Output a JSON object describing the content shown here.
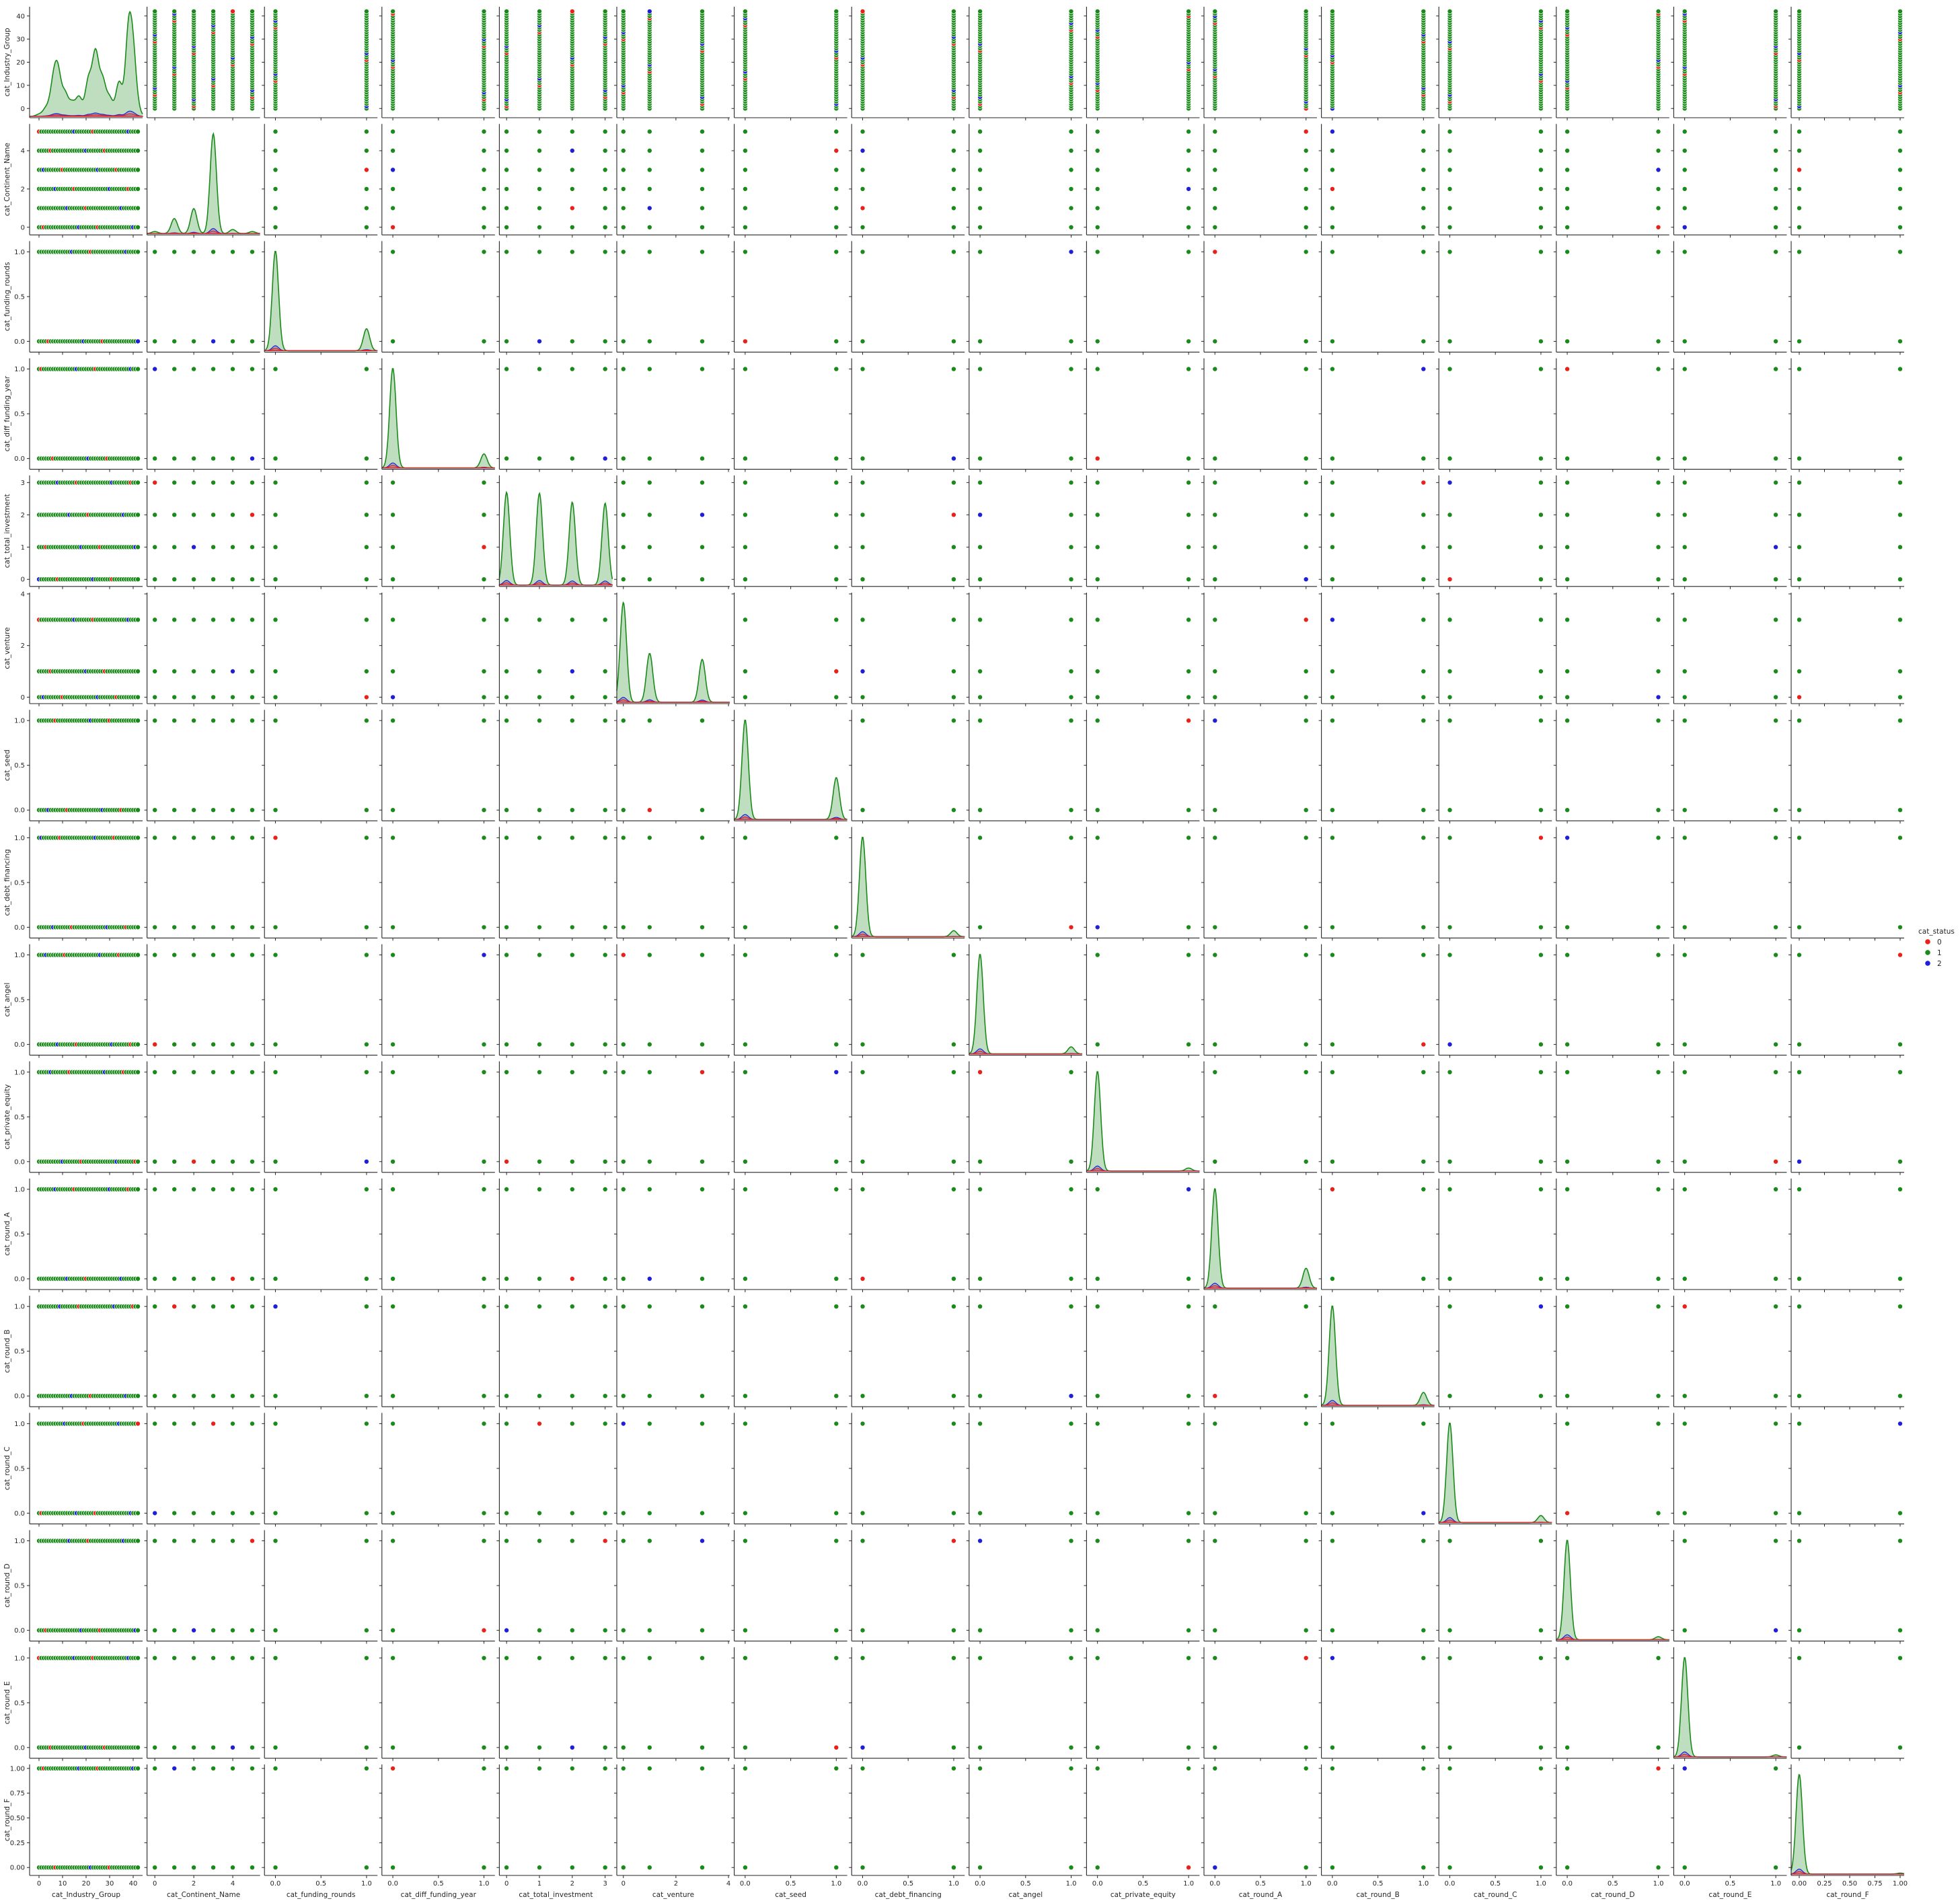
{
  "chart_data": {
    "type": "scatter",
    "variables": [
      {
        "name": "cat_Industry_Group",
        "range": [
          -4,
          44
        ],
        "ticks": [
          0,
          10,
          20,
          30,
          40
        ],
        "tick_labels": [
          "0",
          "10",
          "20",
          "30",
          "40"
        ],
        "values": [
          0,
          1,
          2,
          3,
          4,
          5,
          6,
          7,
          8,
          9,
          10,
          11,
          12,
          13,
          14,
          15,
          16,
          17,
          18,
          19,
          20,
          21,
          22,
          23,
          24,
          25,
          26,
          27,
          28,
          29,
          30,
          31,
          32,
          33,
          34,
          35,
          36,
          37,
          38,
          39,
          40,
          41,
          42
        ],
        "kde": [
          [
            0,
            0.02
          ],
          [
            3,
            0.08
          ],
          [
            6,
            0.3
          ],
          [
            8,
            0.42
          ],
          [
            11,
            0.22
          ],
          [
            14,
            0.13
          ],
          [
            17,
            0.19
          ],
          [
            21,
            0.36
          ],
          [
            24,
            0.62
          ],
          [
            27,
            0.35
          ],
          [
            30,
            0.18
          ],
          [
            34,
            0.34
          ],
          [
            38,
            0.8
          ],
          [
            40,
            0.55
          ],
          [
            42,
            0.05
          ]
        ]
      },
      {
        "name": "cat_Continent_Name",
        "range": [
          -0.4,
          5.4
        ],
        "ticks": [
          0,
          2,
          4
        ],
        "tick_labels": [
          "0",
          "2",
          "4"
        ],
        "values": [
          0,
          1,
          2,
          3,
          4,
          5
        ],
        "kde": [
          [
            0,
            0.02
          ],
          [
            1,
            0.15
          ],
          [
            2,
            0.25
          ],
          [
            3,
            1.0
          ],
          [
            4,
            0.04
          ],
          [
            5,
            0.02
          ]
        ]
      },
      {
        "name": "cat_funding_rounds",
        "range": [
          -0.12,
          1.12
        ],
        "ticks": [
          0,
          0.5,
          1
        ],
        "tick_labels": [
          "0.0",
          "0.5",
          "1.0"
        ],
        "values": [
          0,
          1
        ],
        "kde": [
          [
            0,
            1.0
          ],
          [
            1,
            0.22
          ]
        ]
      },
      {
        "name": "cat_diff_funding_year",
        "range": [
          -0.12,
          1.12
        ],
        "ticks": [
          0,
          0.5,
          1
        ],
        "tick_labels": [
          "0.0",
          "0.5",
          "1.0"
        ],
        "values": [
          0,
          1
        ],
        "kde": [
          [
            0,
            1.0
          ],
          [
            1,
            0.14
          ]
        ]
      },
      {
        "name": "cat_total_investment",
        "range": [
          -0.22,
          3.22
        ],
        "ticks": [
          0,
          1,
          2,
          3
        ],
        "tick_labels": [
          "0",
          "1",
          "2",
          "3"
        ],
        "values": [
          0,
          1,
          2,
          3
        ],
        "kde": [
          [
            0,
            0.93
          ],
          [
            1,
            0.92
          ],
          [
            2,
            0.83
          ],
          [
            3,
            0.82
          ]
        ]
      },
      {
        "name": "cat_venture",
        "range": [
          -0.25,
          4.05
        ],
        "ticks": [
          0,
          2,
          4
        ],
        "tick_labels": [
          "0",
          "2",
          "4"
        ],
        "values": [
          0,
          1,
          3
        ],
        "kde": [
          [
            0,
            1.0
          ],
          [
            1,
            0.49
          ],
          [
            3,
            0.43
          ]
        ]
      },
      {
        "name": "cat_seed",
        "range": [
          -0.12,
          1.12
        ],
        "ticks": [
          0,
          0.5,
          1
        ],
        "tick_labels": [
          "0.0",
          "0.5",
          "1.0"
        ],
        "values": [
          0,
          1
        ],
        "kde": [
          [
            0,
            1.0
          ],
          [
            1,
            0.42
          ]
        ]
      },
      {
        "name": "cat_debt_financing",
        "range": [
          -0.12,
          1.12
        ],
        "ticks": [
          0,
          0.5,
          1
        ],
        "tick_labels": [
          "0.0",
          "0.5",
          "1.0"
        ],
        "values": [
          0,
          1
        ],
        "kde": [
          [
            0,
            1.0
          ],
          [
            1,
            0.06
          ]
        ]
      },
      {
        "name": "cat_angel",
        "range": [
          -0.12,
          1.12
        ],
        "ticks": [
          0,
          0.5,
          1
        ],
        "tick_labels": [
          "0.0",
          "0.5",
          "1.0"
        ],
        "values": [
          0,
          1
        ],
        "kde": [
          [
            0,
            1.0
          ],
          [
            1,
            0.07
          ]
        ]
      },
      {
        "name": "cat_private_equity",
        "range": [
          -0.12,
          1.12
        ],
        "ticks": [
          0,
          0.5,
          1
        ],
        "tick_labels": [
          "0.0",
          "0.5",
          "1.0"
        ],
        "values": [
          0,
          1
        ],
        "kde": [
          [
            0,
            1.0
          ],
          [
            1,
            0.03
          ]
        ]
      },
      {
        "name": "cat_round_A",
        "range": [
          -0.12,
          1.12
        ],
        "ticks": [
          0,
          0.5,
          1
        ],
        "tick_labels": [
          "0.0",
          "0.5",
          "1.0"
        ],
        "values": [
          0,
          1
        ],
        "kde": [
          [
            0,
            1.0
          ],
          [
            1,
            0.2
          ]
        ]
      },
      {
        "name": "cat_round_B",
        "range": [
          -0.12,
          1.12
        ],
        "ticks": [
          0,
          0.5,
          1
        ],
        "tick_labels": [
          "0.0",
          "0.5",
          "1.0"
        ],
        "values": [
          0,
          1
        ],
        "kde": [
          [
            0,
            1.0
          ],
          [
            1,
            0.13
          ]
        ]
      },
      {
        "name": "cat_round_C",
        "range": [
          -0.12,
          1.12
        ],
        "ticks": [
          0,
          0.5,
          1
        ],
        "tick_labels": [
          "0.0",
          "0.5",
          "1.0"
        ],
        "values": [
          0,
          1
        ],
        "kde": [
          [
            0,
            1.0
          ],
          [
            1,
            0.07
          ]
        ]
      },
      {
        "name": "cat_round_D",
        "range": [
          -0.12,
          1.12
        ],
        "ticks": [
          0,
          0.5,
          1
        ],
        "tick_labels": [
          "0.0",
          "0.5",
          "1.0"
        ],
        "values": [
          0,
          1
        ],
        "kde": [
          [
            0,
            1.0
          ],
          [
            1,
            0.03
          ]
        ]
      },
      {
        "name": "cat_round_E",
        "range": [
          -0.12,
          1.12
        ],
        "ticks": [
          0,
          0.5,
          1
        ],
        "tick_labels": [
          "0.0",
          "0.5",
          "1.0"
        ],
        "values": [
          0,
          1
        ],
        "kde": [
          [
            0,
            1.0
          ],
          [
            1,
            0.02
          ]
        ]
      },
      {
        "name": "cat_round_F",
        "range": [
          -0.08,
          1.04
        ],
        "ticks": [
          0,
          0.25,
          0.5,
          0.75,
          1
        ],
        "tick_labels": [
          "0.00",
          "0.25",
          "0.50",
          "0.75",
          "1.00"
        ],
        "values": [
          0,
          1
        ],
        "kde": [
          [
            0,
            1.0
          ],
          [
            1,
            0.01
          ]
        ]
      }
    ],
    "hue": {
      "title": "cat_status",
      "levels": [
        {
          "label": "0",
          "color": "#e8221a"
        },
        {
          "label": "1",
          "color": "#1a8a1a"
        },
        {
          "label": "2",
          "color": "#1f1fd8"
        }
      ]
    },
    "diagonal": "kde",
    "offdiagonal": "scatter",
    "legend_placement": "right-center",
    "grid": false
  }
}
